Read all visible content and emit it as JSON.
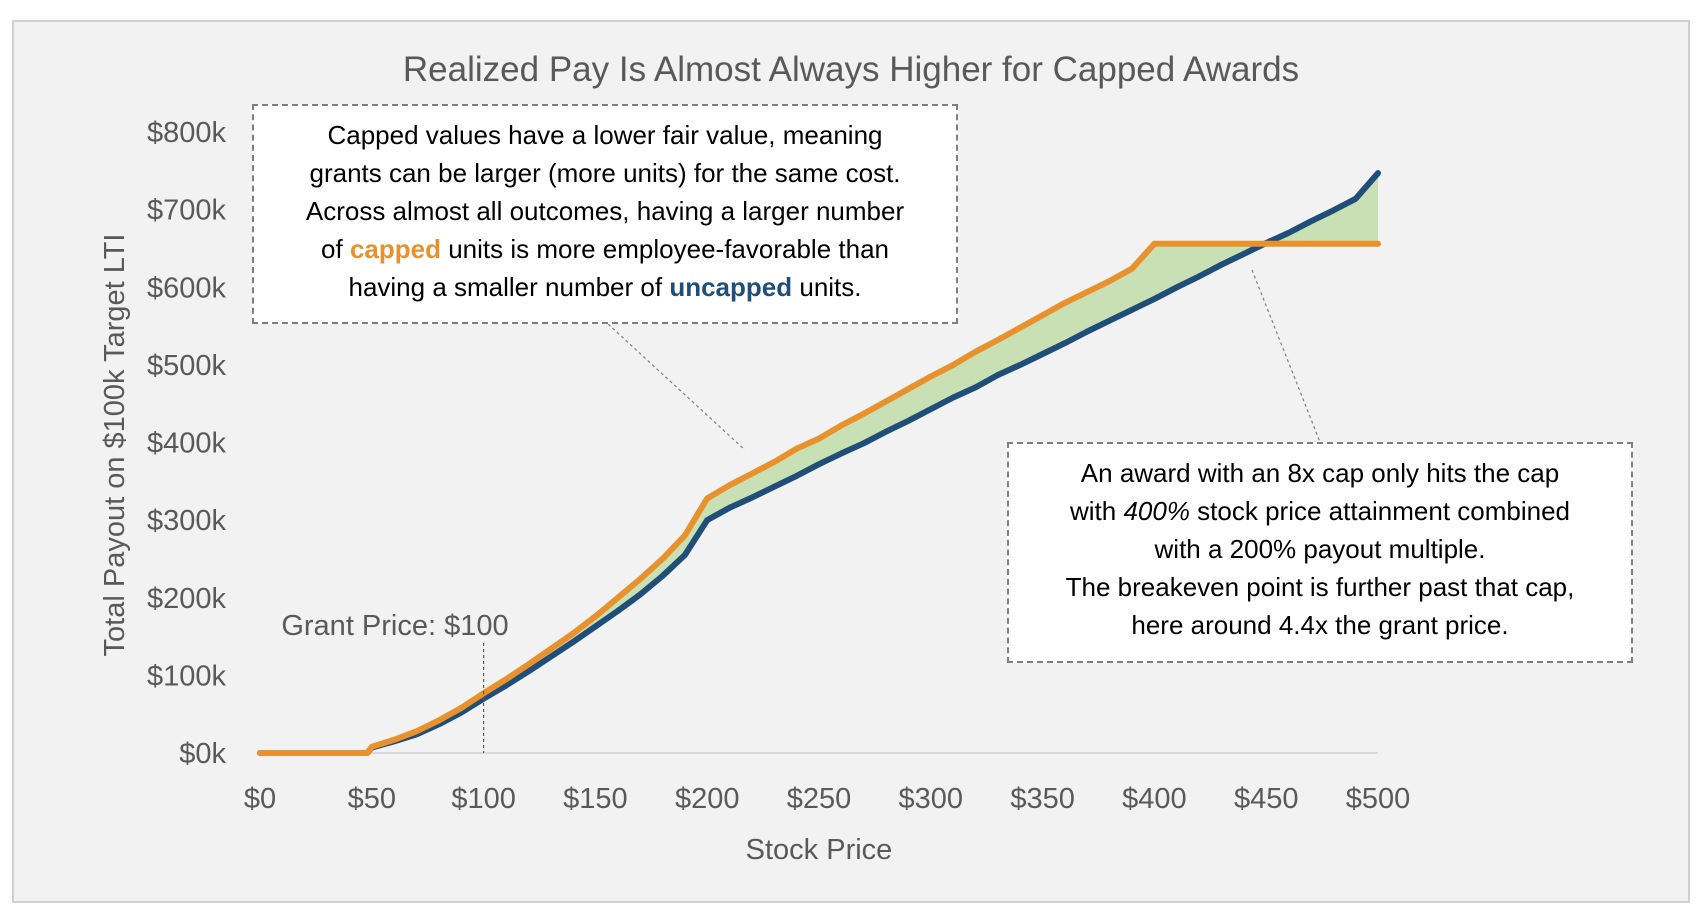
{
  "chart_data": {
    "type": "line",
    "title": "Realized Pay Is Almost Always Higher for Capped Awards",
    "xlabel": "Stock Price",
    "ylabel": "Total Payout on $100k Target LTI",
    "xlim": [
      0,
      500
    ],
    "ylim": [
      0,
      800
    ],
    "x_ticks": [
      "$0",
      "$50",
      "$100",
      "$150",
      "$200",
      "$250",
      "$300",
      "$350",
      "$400",
      "$450",
      "$500"
    ],
    "y_ticks": [
      "$0k",
      "$100k",
      "$200k",
      "$300k",
      "$400k",
      "$500k",
      "$600k",
      "$700k",
      "$800k"
    ],
    "grid": false,
    "legend": "none",
    "colors": {
      "capped": "#e8912d",
      "uncapped": "#1f4e79",
      "fill": "#c9e0b5"
    },
    "series": [
      {
        "key": "capped",
        "x": [
          0,
          48,
          50,
          60,
          70,
          80,
          90,
          100,
          110,
          120,
          130,
          140,
          150,
          160,
          170,
          180,
          190,
          200,
          210,
          220,
          230,
          240,
          250,
          260,
          270,
          280,
          290,
          300,
          310,
          320,
          330,
          340,
          350,
          360,
          370,
          380,
          390,
          400,
          410,
          420,
          430,
          440,
          450,
          460,
          470,
          480,
          490,
          500
        ],
        "values": [
          0,
          0,
          8,
          17,
          28,
          42,
          58,
          77,
          95,
          114,
          134,
          154,
          176,
          200,
          224,
          250,
          280,
          328,
          345,
          360,
          375,
          392,
          405,
          422,
          437,
          453,
          469,
          485,
          500,
          517,
          532,
          548,
          564,
          580,
          594,
          608,
          624,
          656,
          656,
          656,
          656,
          656,
          656,
          656,
          656,
          656,
          656,
          656
        ]
      },
      {
        "key": "uncapped",
        "x": [
          0,
          48,
          50,
          60,
          70,
          80,
          90,
          100,
          110,
          120,
          130,
          140,
          150,
          160,
          170,
          180,
          190,
          200,
          210,
          220,
          230,
          240,
          250,
          260,
          270,
          280,
          290,
          300,
          310,
          320,
          330,
          340,
          350,
          360,
          370,
          380,
          390,
          400,
          410,
          420,
          430,
          440,
          450,
          460,
          470,
          480,
          490,
          500
        ],
        "values": [
          0,
          0,
          7,
          15,
          24,
          37,
          52,
          70,
          87,
          105,
          124,
          143,
          163,
          183,
          204,
          228,
          255,
          300,
          316,
          329,
          343,
          357,
          372,
          386,
          399,
          414,
          428,
          443,
          458,
          471,
          487,
          500,
          514,
          528,
          543,
          557,
          571,
          585,
          600,
          614,
          629,
          643,
          657,
          670,
          685,
          699,
          714,
          747
        ]
      }
    ],
    "annotations": {
      "grant_price_label": "Grant Price: $100",
      "grant_price_x": 100
    }
  },
  "note_left": {
    "l1": "Capped values have a lower fair value, meaning",
    "l2": "grants can be larger (more units) for the same cost.",
    "l3": "Across almost all outcomes, having a larger number",
    "l4_pre": "of",
    "l4_capped": "capped",
    "l4_post": "units is more employee-favorable  than",
    "l5_pre": "having a smaller number of",
    "l5_uncapped": "uncapped",
    "l5_post": "units."
  },
  "note_right": {
    "l1": "An award with an 8x cap only hits the cap",
    "l2_pre": "with",
    "l2_em": "400%",
    "l2_post": "stock price attainment combined",
    "l3": "with a 200% payout multiple.",
    "l4": "The breakeven point is further past that cap,",
    "l5": "here around 4.4x the grant price."
  }
}
